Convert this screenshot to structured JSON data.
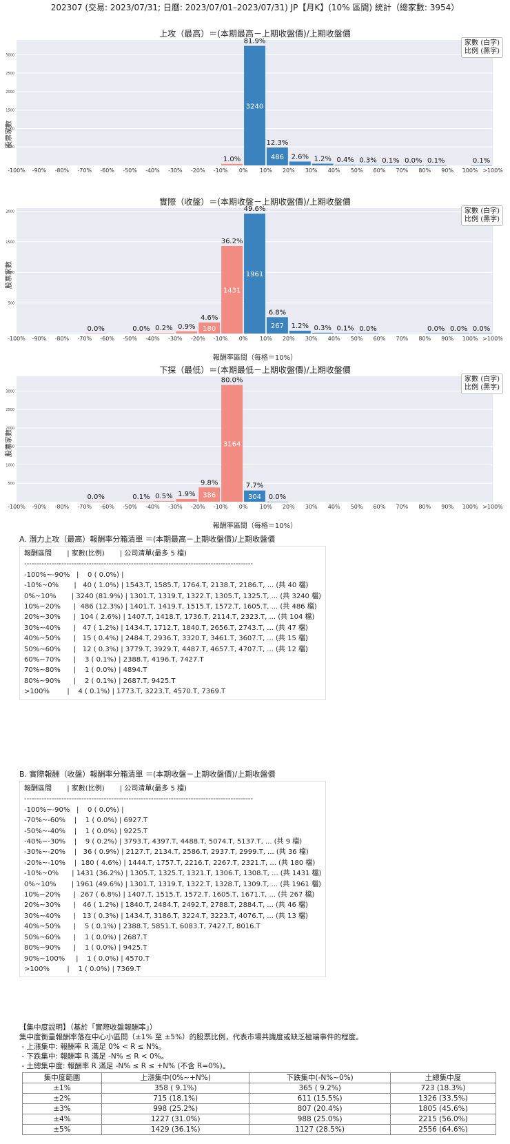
{
  "header": {
    "title": "202307 (交易: 2023/07/31; 日曆: 2023/07/01–2023/07/31) JP【月K】(10% 區間) 統計（總家數: 3954）"
  },
  "legend": {
    "line1": "家數 (白字)",
    "line2": "比例 (黑字)"
  },
  "x_ticks": [
    "-100%",
    "-90%",
    "-80%",
    "-70%",
    "-60%",
    "-50%",
    "-40%",
    "-30%",
    "-20%",
    "-10%",
    "0%",
    "10%",
    "20%",
    "30%",
    "40%",
    "50%",
    "60%",
    "70%",
    "80%",
    "90%",
    "100%",
    ">100%"
  ],
  "colors": {
    "pos": "#3a83bf",
    "neg": "#f28b82",
    "bg": "#eaeaf2"
  },
  "chart_data": [
    {
      "type": "bar",
      "title": "上攻（最高）＝(本期最高－上期收盤價)/上期收盤價",
      "ylabel": "股票家數",
      "xlabel": "",
      "ylim": [
        0,
        3400
      ],
      "yticks": [
        500,
        1000,
        1500,
        2000,
        2500,
        3000
      ],
      "bins": [
        {
          "i": 9,
          "count": 40,
          "pct": "1.0%"
        },
        {
          "i": 10,
          "count": 3240,
          "pct": "81.9%"
        },
        {
          "i": 11,
          "count": 486,
          "pct": "12.3%"
        },
        {
          "i": 12,
          "count": 104,
          "pct": "2.6%"
        },
        {
          "i": 13,
          "count": 47,
          "pct": "1.2%"
        },
        {
          "i": 14,
          "count": 15,
          "pct": "0.4%"
        },
        {
          "i": 15,
          "count": 12,
          "pct": "0.3%"
        },
        {
          "i": 16,
          "count": 3,
          "pct": "0.1%"
        },
        {
          "i": 17,
          "count": 1,
          "pct": "0.0%"
        },
        {
          "i": 18,
          "count": 2,
          "pct": "0.1%"
        },
        {
          "i": 20,
          "count": 4,
          "pct": "0.1%"
        }
      ]
    },
    {
      "type": "bar",
      "title": "實際（收盤）＝(本期收盤－上期收盤價)/上期收盤價",
      "ylabel": "股票家數",
      "xlabel": "報酬率區間（每格＝10%）",
      "ylim": [
        0,
        2050
      ],
      "yticks": [
        500,
        1000,
        1500,
        2000
      ],
      "bins": [
        {
          "i": 3,
          "count": 1,
          "pct": "0.0%"
        },
        {
          "i": 5,
          "count": 1,
          "pct": "0.0%"
        },
        {
          "i": 6,
          "count": 9,
          "pct": "0.2%"
        },
        {
          "i": 7,
          "count": 36,
          "pct": "0.9%"
        },
        {
          "i": 8,
          "count": 180,
          "pct": "4.6%"
        },
        {
          "i": 9,
          "count": 1431,
          "pct": "36.2%"
        },
        {
          "i": 10,
          "count": 1961,
          "pct": "49.6%"
        },
        {
          "i": 11,
          "count": 267,
          "pct": "6.8%"
        },
        {
          "i": 12,
          "count": 46,
          "pct": "1.2%"
        },
        {
          "i": 13,
          "count": 13,
          "pct": "0.3%"
        },
        {
          "i": 14,
          "count": 5,
          "pct": "0.1%"
        },
        {
          "i": 15,
          "count": 1,
          "pct": "0.0%"
        },
        {
          "i": 18,
          "count": 1,
          "pct": "0.0%"
        },
        {
          "i": 19,
          "count": 1,
          "pct": "0.0%"
        },
        {
          "i": 20,
          "count": 1,
          "pct": "0.0%"
        }
      ]
    },
    {
      "type": "bar",
      "title": "下探（最低）＝(本期最低－上期收盤價)/上期收盤價",
      "ylabel": "股票家數",
      "xlabel": "報酬率區間（每格＝10%）",
      "ylim": [
        0,
        3400
      ],
      "yticks": [
        500,
        1000,
        1500,
        2000,
        2500,
        3000
      ],
      "bins": [
        {
          "i": 3,
          "count": 1,
          "pct": "0.0%"
        },
        {
          "i": 5,
          "count": 3,
          "pct": "0.1%"
        },
        {
          "i": 6,
          "count": 20,
          "pct": "0.5%"
        },
        {
          "i": 7,
          "count": 75,
          "pct": "1.9%"
        },
        {
          "i": 8,
          "count": 386,
          "pct": "9.8%"
        },
        {
          "i": 9,
          "count": 3164,
          "pct": "80.0%"
        },
        {
          "i": 10,
          "count": 304,
          "pct": "7.7%"
        },
        {
          "i": 11,
          "count": 1,
          "pct": "0.0%"
        }
      ]
    }
  ],
  "tableA": {
    "heading": "A. 潛力上攻（最高）報酬率分箱清單 ＝(本期最高－上期收盤價)/上期收盤價",
    "rows": [
      "報酬區間       | 家數(比例)       | 公司清單(最多 5 檔)",
      "--------------------------------------------------------------------------------------------",
      "-100%~-90%   |    0 ( 0.0%) |",
      "-10%~0%       |   40 ( 1.0%) | 1543.T, 1585.T, 1764.T, 2138.T, 2186.T, ... (共 40 檔)",
      "0%~10%       | 3240 (81.9%) | 1301.T, 1319.T, 1322.T, 1305.T, 1325.T, ... (共 3240 檔)",
      "10%~20%      |  486 (12.3%) | 1401.T, 1419.T, 1515.T, 1572.T, 1605.T, ... (共 486 檔)",
      "20%~30%      |  104 ( 2.6%) | 1407.T, 1418.T, 1736.T, 2114.T, 2323.T, ... (共 104 檔)",
      "30%~40%      |   47 ( 1.2%) | 1434.T, 1712.T, 1840.T, 2656.T, 2743.T, ... (共 47 檔)",
      "40%~50%      |   15 ( 0.4%) | 2484.T, 2936.T, 3320.T, 3461.T, 3607.T, ... (共 15 檔)",
      "50%~60%      |   12 ( 0.3%) | 3779.T, 3929.T, 4487.T, 4657.T, 4707.T, ... (共 12 檔)",
      "60%~70%      |    3 ( 0.1%) | 2388.T, 4196.T, 7427.T",
      "70%~80%      |    1 ( 0.0%) | 4894.T",
      "80%~90%      |    2 ( 0.1%) | 2687.T, 9425.T",
      ">100%        |    4 ( 0.1%) | 1773.T, 3223.T, 4570.T, 7369.T"
    ]
  },
  "tableB": {
    "heading": "B. 實際報酬（收盤）報酬率分箱清單 ＝(本期收盤－上期收盤價)/上期收盤價",
    "rows": [
      "報酬區間       | 家數(比例)       | 公司清單(最多 5 檔)",
      "--------------------------------------------------------------------------------------------",
      "-100%~-90%   |    0 ( 0.0%) |",
      "-70%~-60%    |    1 ( 0.0%) | 6927.T",
      "-50%~-40%    |    1 ( 0.0%) | 9225.T",
      "-40%~-30%    |    9 ( 0.2%) | 3793.T, 4397.T, 4488.T, 5074.T, 5137.T, ... (共 9 檔)",
      "-30%~-20%    |   36 ( 0.9%) | 2127.T, 2134.T, 2586.T, 2937.T, 2999.T, ... (共 36 檔)",
      "-20%~-10%    |  180 ( 4.6%) | 1444.T, 1757.T, 2216.T, 2267.T, 2321.T, ... (共 180 檔)",
      "-10%~0%      | 1431 (36.2%) | 1305.T, 1325.T, 1321.T, 1306.T, 1308.T, ... (共 1431 檔)",
      "0%~10%       | 1961 (49.6%) | 1301.T, 1319.T, 1322.T, 1328.T, 1309.T, ... (共 1961 檔)",
      "10%~20%      |  267 ( 6.8%) | 1407.T, 1515.T, 1572.T, 1605.T, 1671.T, ... (共 267 檔)",
      "20%~30%      |   46 ( 1.2%) | 1840.T, 2484.T, 2492.T, 2788.T, 2884.T, ... (共 46 檔)",
      "30%~40%      |   13 ( 0.3%) | 1434.T, 3186.T, 3224.T, 3223.T, 4076.T, ... (共 13 檔)",
      "40%~50%      |    5 ( 0.1%) | 2388.T, 5851.T, 6083.T, 7427.T, 8016.T",
      "50%~60%      |    1 ( 0.0%) | 2687.T",
      "80%~90%      |    1 ( 0.0%) | 9425.T",
      "90%~100%     |    1 ( 0.0%) | 4570.T",
      ">100%        |    1 ( 0.0%) | 7369.T"
    ]
  },
  "concentration": {
    "lines": [
      "【集中度說明】（基於「實際收盤報酬率」）",
      "集中度衡量報酬率落在中心小區間（±1% 至 ±5%）的股票比例，代表市場共識度或缺乏極端事件的程度。",
      " - 上漲集中: 報酬率 R 滿足 0% < R ≤ N%。",
      " - 下跌集中: 報酬率 R 滿足 -N% ≤ R < 0%。",
      " - 土總集中度: 報酬率 R 滿足 -N% ≤ R ≤ +N% (不含 R=0%)。"
    ],
    "headers": [
      "集中度範圍",
      "上漲集中(0%~+N%)",
      "下跌集中(-N%~0%)",
      "土總集中度"
    ],
    "rows": [
      [
        "±1%",
        "358 ( 9.1%)",
        "365 ( 9.2%)",
        "723 (18.3%)"
      ],
      [
        "±2%",
        "715 (18.1%)",
        "611 (15.5%)",
        "1326 (33.5%)"
      ],
      [
        "±3%",
        "998 (25.2%)",
        "807 (20.4%)",
        "1805 (45.6%)"
      ],
      [
        "±4%",
        "1227 (31.0%)",
        "988 (25.0%)",
        "2215 (56.0%)"
      ],
      [
        "±5%",
        "1429 (36.1%)",
        "1127 (28.5%)",
        "2556 (64.6%)"
      ]
    ]
  }
}
